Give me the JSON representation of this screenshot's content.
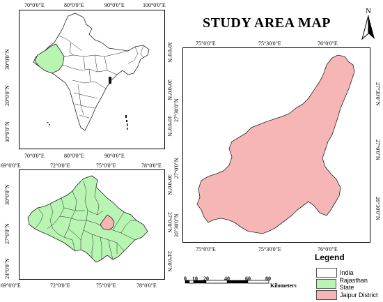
{
  "title": "STUDY AREA MAP",
  "north_label": "N",
  "colors": {
    "india_fill": "#ffffff",
    "rajasthan_fill": "#b8f5b3",
    "jaipur_fill": "#f6b6b6",
    "border": "#222222"
  },
  "india_map": {
    "top_ticks": [
      "70°0'0\"E",
      "80°0'0\"E",
      "90°0'0\"E",
      "100°0'0\"E"
    ],
    "bottom_ticks": [
      "70°0'0\"E",
      "80°0'0\"E",
      "90°0'0\"E"
    ],
    "left_ticks": [
      "30°0'0\"N",
      "20°0'0\"N",
      "10°0'0\"N"
    ],
    "right_ticks": [
      "30°0'0\"N",
      "20°0'0\"N",
      "10°0'0\"N"
    ]
  },
  "rajasthan_map": {
    "top_ticks": [
      "69°0'0\"E",
      "72°0'0\"E",
      "75°0'0\"E",
      "78°0'0\"E"
    ],
    "bottom_ticks": [
      "69°0'0\"E",
      "72°0'0\"E",
      "75°0'0\"E",
      "78°0'0\"E"
    ],
    "left_ticks": [
      "30°0'0\"N",
      "27°0'0\"N",
      "24°0'0\"N"
    ],
    "right_ticks": [
      "30°0'0\"N",
      "27°0'0\"N",
      "24°0'0\"N"
    ]
  },
  "jaipur_map": {
    "top_ticks": [
      "75°0'0\"E",
      "75°30'0\"E",
      "76°0'0\"E"
    ],
    "bottom_ticks": [
      "75°0'0\"E",
      "75°30'0\"E",
      "76°0'0\"E"
    ],
    "left_ticks": [
      "27°30'0\"N",
      "27°0'0\"N",
      "26°30'0\"N"
    ],
    "right_ticks": [
      "27°30'0\"N",
      "27°0'0\"N",
      "26°30'0\"N"
    ]
  },
  "scale_bar": {
    "ticks": [
      "0",
      "10",
      "20",
      "40",
      "60",
      "80"
    ],
    "unit": "Kilometers"
  },
  "legend": {
    "title": "Legend",
    "items": [
      {
        "label": "India",
        "color": "#ffffff"
      },
      {
        "label": "Rajasthan State",
        "color": "#b8f5b3"
      },
      {
        "label": "Jaipur District",
        "color": "#f6b6b6"
      }
    ]
  }
}
